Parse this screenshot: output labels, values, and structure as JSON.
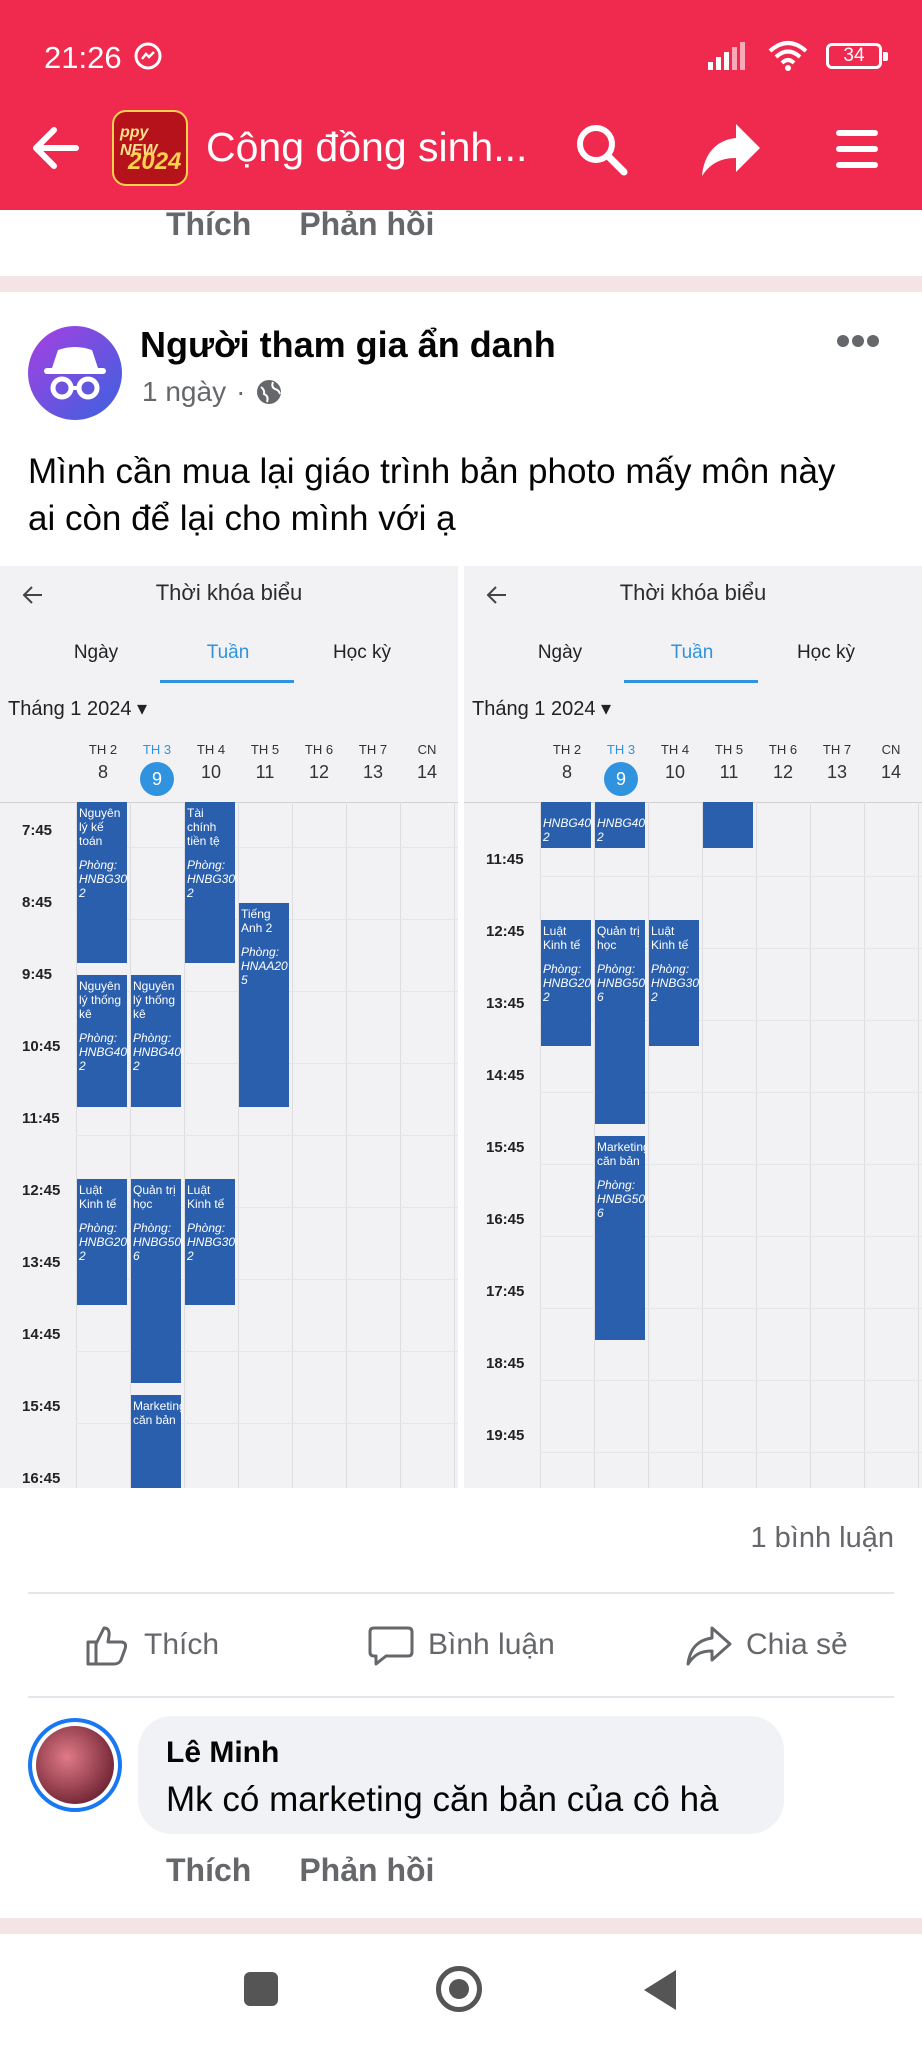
{
  "status_bar": {
    "time": "21:26",
    "battery": "34"
  },
  "header": {
    "title": "Cộng đồng sinh...",
    "avatar_text_line1": "ppy NEW",
    "avatar_text_line2": "2024",
    "accent_color": "#ef2a4e"
  },
  "prev_comment_actions": {
    "like": "Thích",
    "reply": "Phản hồi"
  },
  "post": {
    "author": "Người tham gia ẩn danh",
    "time": "1 ngày",
    "text_line1": "Mình cần mua lại giáo trình bản photo mấy môn này",
    "text_line2": "ai còn để lại cho mình với ạ",
    "comment_count": "1 bình luận",
    "actions": {
      "like": "Thích",
      "comment": "Bình luận",
      "share": "Chia sẻ"
    }
  },
  "schedule": {
    "title": "Thời khóa biểu",
    "tabs": [
      "Ngày",
      "Tuần",
      "Học kỳ"
    ],
    "month": "Tháng 1 2024",
    "days": [
      {
        "name": "TH 2",
        "num": "8"
      },
      {
        "name": "TH 3",
        "num": "9"
      },
      {
        "name": "TH 4",
        "num": "10"
      },
      {
        "name": "TH 5",
        "num": "11"
      },
      {
        "name": "TH 6",
        "num": "12"
      },
      {
        "name": "TH 7",
        "num": "13"
      },
      {
        "name": "CN",
        "num": "14"
      }
    ],
    "left_times": [
      "7:45",
      "8:45",
      "9:45",
      "10:45",
      "11:45",
      "12:45",
      "13:45",
      "14:45",
      "15:45",
      "16:45"
    ],
    "right_times": [
      "11:45",
      "12:45",
      "13:45",
      "14:45",
      "15:45",
      "16:45",
      "17:45",
      "18:45",
      "19:45"
    ],
    "left_events": [
      {
        "day": 0,
        "start": "7:45",
        "end": "10:00",
        "name": "Nguyên lý kế toán",
        "room": "Phòng: HNBG30 2"
      },
      {
        "day": 2,
        "start": "7:45",
        "end": "10:00",
        "name": "Tài chính tiền tệ",
        "room": "Phòng: HNBG30 2"
      },
      {
        "day": 3,
        "start": "9:10",
        "end": "12:00",
        "name": "Tiếng Anh 2",
        "room": "Phòng: HNAA20 5"
      },
      {
        "day": 0,
        "start": "10:10",
        "end": "12:00",
        "name": "Nguyên lý thống kê",
        "room": "Phòng: HNBG40 2"
      },
      {
        "day": 1,
        "start": "10:10",
        "end": "12:00",
        "name": "Nguyên lý thống kê",
        "room": "Phòng: HNBG40 2"
      },
      {
        "day": 0,
        "start": "13:00",
        "end": "14:45",
        "name": "Luật Kinh tế",
        "room": "Phòng: HNBG20 2"
      },
      {
        "day": 2,
        "start": "13:00",
        "end": "14:45",
        "name": "Luật Kinh tế",
        "room": "Phòng: HNBG30 2"
      },
      {
        "day": 1,
        "start": "13:00",
        "end": "15:50",
        "name": "Quản trị học",
        "room": "Phòng: HNBG50 6"
      },
      {
        "day": 1,
        "start": "16:00",
        "end": "18:50",
        "name": "Marketing căn bản",
        "room": ""
      }
    ],
    "right_events": [
      {
        "day": 0,
        "start": "10:10",
        "end": "12:00",
        "name": "",
        "room": "HNBG40 2"
      },
      {
        "day": 1,
        "start": "10:10",
        "end": "12:00",
        "name": "",
        "room": "HNBG40 2"
      },
      {
        "day": 3,
        "start": "10:10",
        "end": "12:00",
        "name": "",
        "room": ""
      },
      {
        "day": 0,
        "start": "13:00",
        "end": "14:45",
        "name": "Luật Kinh tế",
        "room": "Phòng: HNBG20 2"
      },
      {
        "day": 2,
        "start": "13:00",
        "end": "14:45",
        "name": "Luật Kinh tế",
        "room": "Phòng: HNBG30 2"
      },
      {
        "day": 1,
        "start": "13:00",
        "end": "15:50",
        "name": "Quản trị học",
        "room": "Phòng: HNBG50 6"
      },
      {
        "day": 1,
        "start": "16:00",
        "end": "18:50",
        "name": "Marketing căn bản",
        "room": "Phòng: HNBG50 6"
      }
    ],
    "event_color": "#2a5fad",
    "today_color": "#2f93e0"
  },
  "comment": {
    "author": "Lê Minh",
    "text": "Mk có marketing căn bản của cô hà",
    "actions": {
      "like": "Thích",
      "reply": "Phản hồi"
    }
  }
}
